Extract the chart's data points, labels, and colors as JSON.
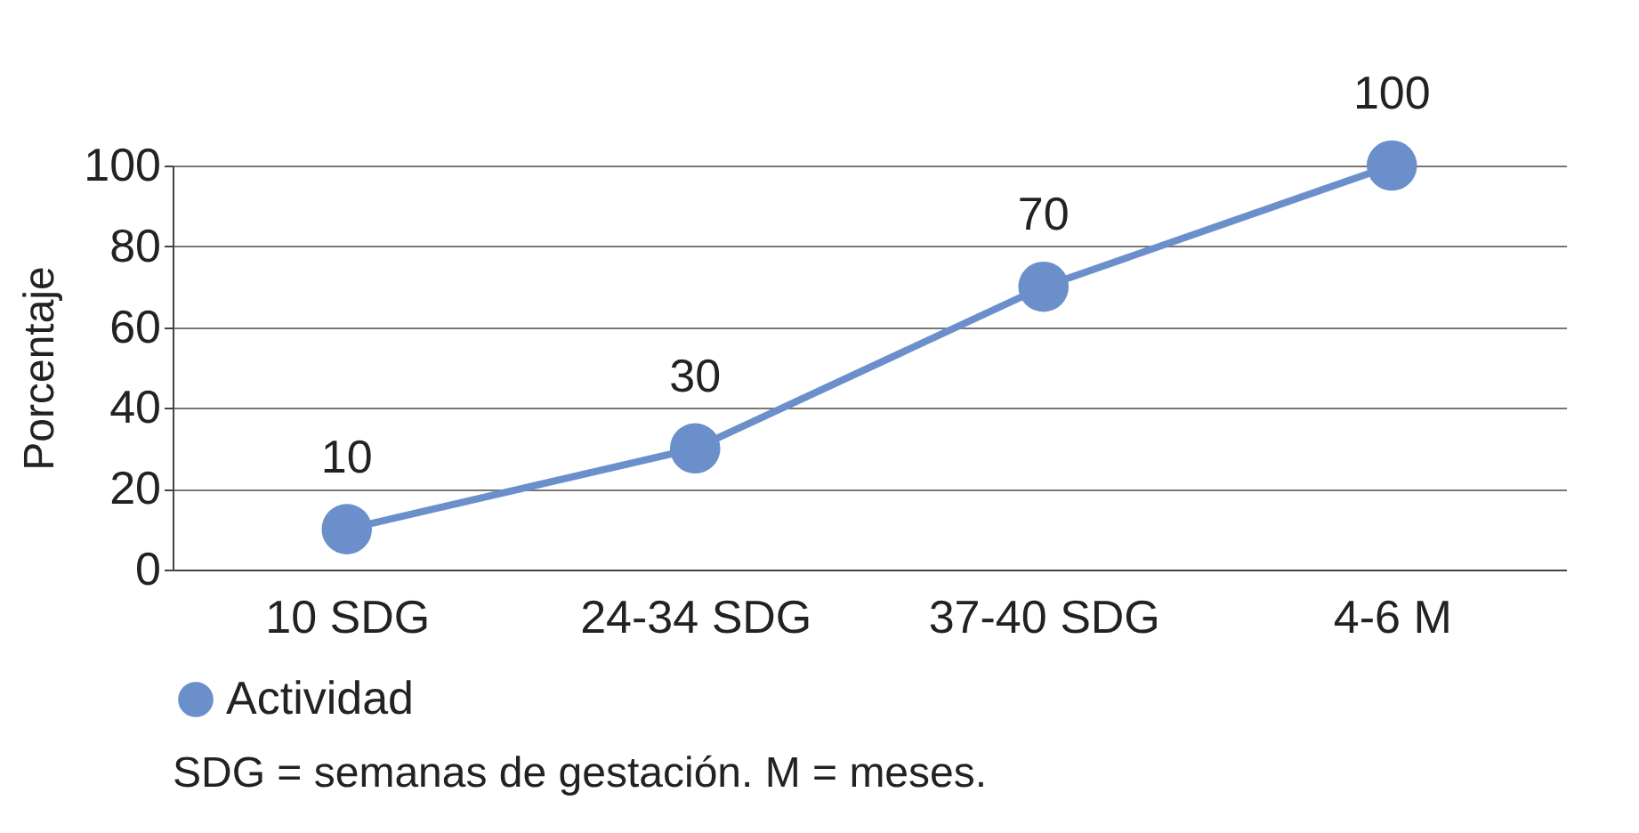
{
  "chart_data": {
    "type": "line",
    "categories": [
      "10 SDG",
      "24-34 SDG",
      "37-40 SDG",
      "4-6 M"
    ],
    "series": [
      {
        "name": "Actividad",
        "color": "#6b8fcb",
        "values": [
          10,
          30,
          70,
          100
        ]
      }
    ],
    "ylabel": "Porcentaje",
    "ylim": [
      0,
      100
    ],
    "yticks": [
      0,
      20,
      40,
      60,
      80,
      100
    ],
    "grid": "y",
    "legend": "bottom",
    "marker": "circle",
    "line_style": "solid",
    "data_labels": true,
    "annotations": [
      "SDG = semanas de gestación. M = meses."
    ]
  }
}
